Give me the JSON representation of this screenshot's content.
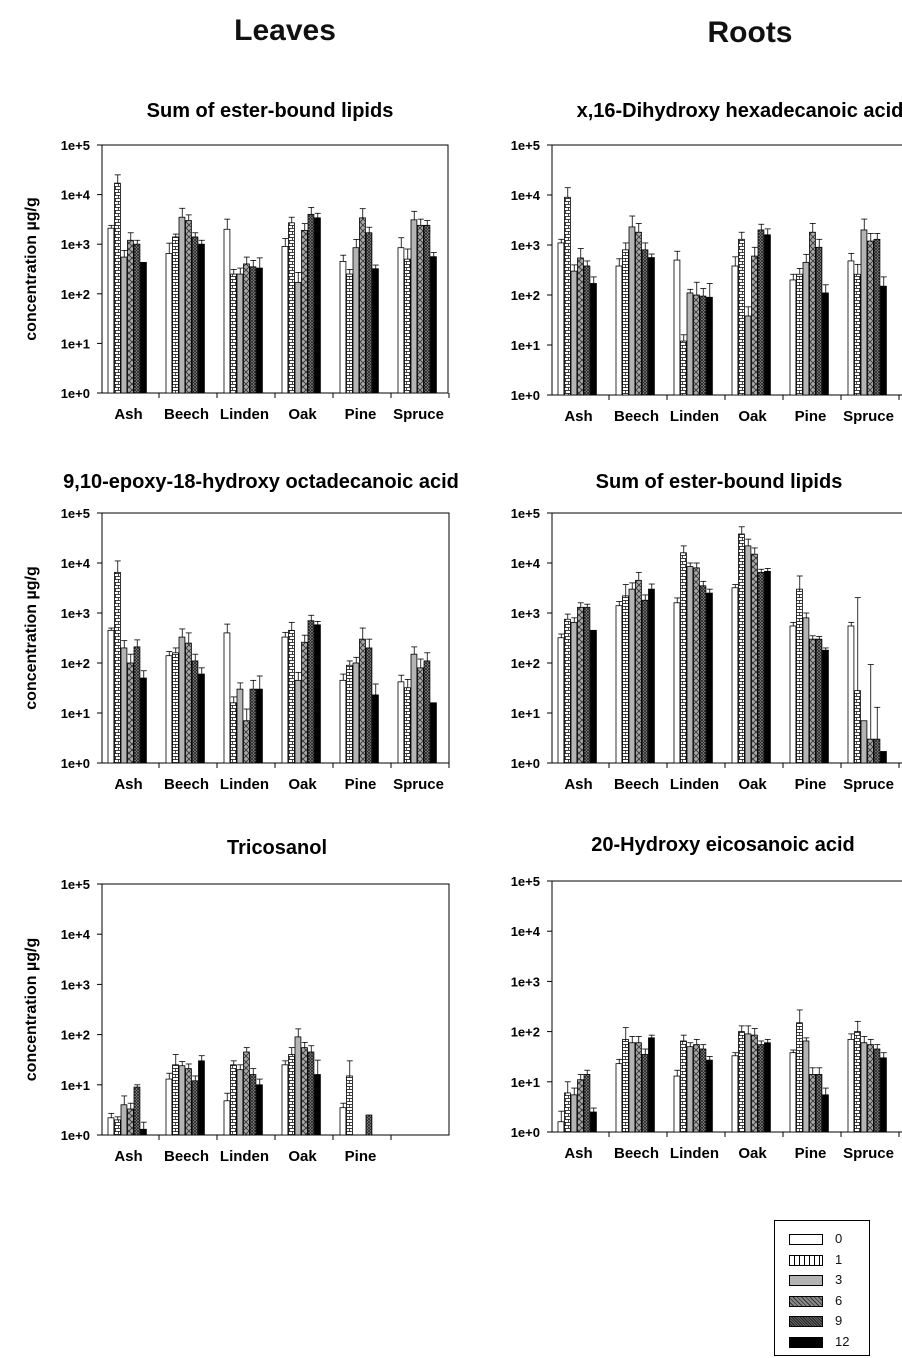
{
  "column_titles": {
    "left": "Leaves",
    "right": "Roots"
  },
  "y_axis_label": "concentration µg/g",
  "series_colors": {
    "0": "#ffffff",
    "1": "#f2f2f2",
    "3": "#b4b4b4",
    "6": "#8c8c8c",
    "9": "#6a6a6a",
    "12": "#000000"
  },
  "legend": [
    {
      "label": "0",
      "pattern": "white"
    },
    {
      "label": "1",
      "pattern": "bricks"
    },
    {
      "label": "3",
      "pattern": "gray"
    },
    {
      "label": "6",
      "pattern": "diamonds"
    },
    {
      "label": "9",
      "pattern": "dense-crosshatch"
    },
    {
      "label": "12",
      "pattern": "black"
    }
  ],
  "chart_data": [
    {
      "type": "bar",
      "column": "Leaves",
      "title": "Sum of ester-bound lipids",
      "yscale": "log",
      "ylim": [
        1,
        100000
      ],
      "yticks": [
        "1e+0",
        "1e+1",
        "1e+2",
        "1e+3",
        "1e+4",
        "1e+5"
      ],
      "ylabel": "concentration µg/g",
      "categories": [
        "Ash",
        "Beech",
        "Linden",
        "Oak",
        "Pine",
        "Spruce"
      ],
      "series": [
        {
          "name": "0",
          "values": [
            2100,
            650,
            2000,
            900,
            450,
            850
          ]
        },
        {
          "name": "1",
          "values": [
            17000,
            1400,
            250,
            2700,
            250,
            500
          ]
        },
        {
          "name": "3",
          "values": [
            550,
            3500,
            250,
            170,
            850,
            3100
          ]
        },
        {
          "name": "6",
          "values": [
            1200,
            3000,
            400,
            1900,
            3400,
            2400
          ]
        },
        {
          "name": "9",
          "values": [
            1000,
            1400,
            350,
            4000,
            1700,
            2400
          ]
        },
        {
          "name": "12",
          "values": [
            430,
            1000,
            330,
            3400,
            320,
            560
          ]
        }
      ],
      "errors": [
        [
          300,
          400,
          1200,
          400,
          150,
          500
        ],
        [
          8000,
          200,
          60,
          800,
          60,
          300
        ],
        [
          200,
          1800,
          80,
          100,
          400,
          1500
        ],
        [
          500,
          900,
          150,
          700,
          1800,
          800
        ],
        [
          200,
          300,
          120,
          1500,
          500,
          600
        ],
        [
          0,
          200,
          200,
          800,
          60,
          120
        ]
      ]
    },
    {
      "type": "bar",
      "column": "Leaves",
      "title": "x,16-Dihydroxy hexadecanoic acid",
      "yscale": "log",
      "ylim": [
        1,
        100000
      ],
      "yticks": [
        "1e+0",
        "1e+1",
        "1e+2",
        "1e+3",
        "1e+4",
        "1e+5"
      ],
      "ylabel": "concentration µg/g",
      "categories": [
        "Ash",
        "Beech",
        "Linden",
        "Oak",
        "Pine",
        "Spruce"
      ],
      "series": [
        {
          "name": "0",
          "values": [
            1100,
            380,
            500,
            380,
            200,
            480
          ]
        },
        {
          "name": "1",
          "values": [
            9000,
            800,
            12,
            1300,
            260,
            260
          ]
        },
        {
          "name": "3",
          "values": [
            300,
            2300,
            110,
            38,
            450,
            2000
          ]
        },
        {
          "name": "6",
          "values": [
            550,
            1800,
            100,
            600,
            1800,
            1200
          ]
        },
        {
          "name": "9",
          "values": [
            380,
            800,
            95,
            2000,
            900,
            1300
          ]
        },
        {
          "name": "12",
          "values": [
            170,
            560,
            90,
            1600,
            110,
            150
          ]
        }
      ],
      "errors": [
        [
          200,
          150,
          250,
          200,
          60,
          200
        ],
        [
          5000,
          300,
          4,
          500,
          80,
          150
        ],
        [
          100,
          1500,
          20,
          20,
          200,
          1300
        ],
        [
          300,
          900,
          80,
          300,
          900,
          500
        ],
        [
          100,
          300,
          40,
          600,
          400,
          400
        ],
        [
          60,
          100,
          80,
          500,
          50,
          80
        ]
      ]
    },
    {
      "type": "bar",
      "column": "Leaves",
      "title": "9,10-epoxy-18-hydroxy octadecanoic acid",
      "yscale": "log",
      "ylim": [
        1,
        100000
      ],
      "yticks": [
        "1e+0",
        "1e+1",
        "1e+2",
        "1e+3",
        "1e+4",
        "1e+5"
      ],
      "ylabel": "concentration µg/g",
      "categories": [
        "Ash",
        "Beech",
        "Linden",
        "Oak",
        "Pine",
        "Spruce"
      ],
      "series": [
        {
          "name": "0",
          "values": [
            450,
            140,
            400,
            330,
            45,
            42
          ]
        },
        {
          "name": "1",
          "values": [
            6500,
            160,
            16,
            450,
            90,
            32
          ]
        },
        {
          "name": "3",
          "values": [
            200,
            330,
            30,
            45,
            100,
            150
          ]
        },
        {
          "name": "6",
          "values": [
            100,
            250,
            7,
            260,
            300,
            80
          ]
        },
        {
          "name": "9",
          "values": [
            210,
            110,
            30,
            700,
            200,
            110
          ]
        },
        {
          "name": "12",
          "values": [
            50,
            60,
            30,
            580,
            23,
            16
          ]
        }
      ],
      "errors": [
        [
          50,
          30,
          200,
          80,
          15,
          15
        ],
        [
          4500,
          40,
          5,
          200,
          20,
          15
        ],
        [
          80,
          150,
          10,
          20,
          30,
          60
        ],
        [
          50,
          150,
          5,
          100,
          200,
          40
        ],
        [
          80,
          40,
          15,
          200,
          100,
          50
        ],
        [
          20,
          20,
          25,
          100,
          15,
          0
        ]
      ]
    },
    {
      "type": "bar",
      "column": "Roots",
      "title": "Sum of ester-bound lipids",
      "yscale": "log",
      "ylim": [
        1,
        100000
      ],
      "yticks": [
        "1e+0",
        "1e+1",
        "1e+2",
        "1e+3",
        "1e+4",
        "1e+5"
      ],
      "categories": [
        "Ash",
        "Beech",
        "Linden",
        "Oak",
        "Pine",
        "Spruce"
      ],
      "series": [
        {
          "name": "0",
          "values": [
            320,
            1400,
            1600,
            3200,
            550,
            550
          ]
        },
        {
          "name": "1",
          "values": [
            750,
            2200,
            16000,
            38000,
            3000,
            28
          ]
        },
        {
          "name": "3",
          "values": [
            650,
            3000,
            8500,
            22000,
            800,
            7
          ]
        },
        {
          "name": "6",
          "values": [
            1300,
            4500,
            8000,
            15000,
            300,
            3
          ]
        },
        {
          "name": "9",
          "values": [
            1300,
            1800,
            3500,
            6500,
            300,
            3
          ]
        },
        {
          "name": "12",
          "values": [
            450,
            3000,
            2500,
            6800,
            180,
            1.7
          ]
        }
      ],
      "errors": [
        [
          60,
          300,
          400,
          500,
          100,
          100
        ],
        [
          200,
          1500,
          6000,
          15000,
          2500,
          2000
        ],
        [
          150,
          1000,
          1500,
          8000,
          200,
          0
        ],
        [
          300,
          2000,
          2000,
          5000,
          50,
          90
        ],
        [
          200,
          500,
          800,
          1000,
          40,
          10
        ],
        [
          0,
          800,
          500,
          1000,
          20,
          0
        ]
      ]
    },
    {
      "type": "bar",
      "column": "Roots",
      "title": "Tricosanol",
      "yscale": "log",
      "ylim": [
        1,
        100000
      ],
      "yticks": [
        "1e+0",
        "1e+1",
        "1e+2",
        "1e+3",
        "1e+4",
        "1e+5"
      ],
      "categories": [
        "Ash",
        "Beech",
        "Linden",
        "Oak",
        "Pine"
      ],
      "series": [
        {
          "name": "0",
          "values": [
            2.2,
            13,
            4.8,
            25,
            3.5
          ]
        },
        {
          "name": "1",
          "values": [
            2,
            25,
            25,
            40,
            15
          ]
        },
        {
          "name": "3",
          "values": [
            4,
            24,
            20,
            90,
            0
          ]
        },
        {
          "name": "6",
          "values": [
            3.3,
            21,
            45,
            55,
            0
          ]
        },
        {
          "name": "9",
          "values": [
            9,
            12,
            16,
            45,
            2.5
          ]
        },
        {
          "name": "12",
          "values": [
            1.3,
            30,
            10,
            16,
            0
          ]
        }
      ],
      "errors": [
        [
          0.5,
          4,
          2,
          5,
          0.8
        ],
        [
          0.3,
          15,
          5,
          15,
          15
        ],
        [
          2,
          5,
          5,
          40,
          0
        ],
        [
          1,
          5,
          10,
          15,
          0
        ],
        [
          1,
          3,
          5,
          15,
          0
        ],
        [
          0.5,
          8,
          3,
          15,
          0
        ]
      ]
    },
    {
      "type": "bar",
      "column": "Roots",
      "title": "20-Hydroxy eicosanoic acid",
      "yscale": "log",
      "ylim": [
        1,
        100000
      ],
      "yticks": [
        "1e+0",
        "1e+1",
        "1e+2",
        "1e+3",
        "1e+4",
        "1e+5"
      ],
      "categories": [
        "Ash",
        "Beech",
        "Linden",
        "Oak",
        "Pine",
        "Spruce"
      ],
      "series": [
        {
          "name": "0",
          "values": [
            1.6,
            23,
            13,
            33,
            38,
            70
          ]
        },
        {
          "name": "1",
          "values": [
            6,
            70,
            65,
            100,
            150,
            100
          ]
        },
        {
          "name": "3",
          "values": [
            5.5,
            60,
            50,
            90,
            65,
            60
          ]
        },
        {
          "name": "6",
          "values": [
            11,
            60,
            55,
            85,
            14,
            55
          ]
        },
        {
          "name": "9",
          "values": [
            14,
            35,
            45,
            55,
            14,
            45
          ]
        },
        {
          "name": "12",
          "values": [
            2.5,
            75,
            27,
            60,
            5.5,
            30
          ]
        }
      ],
      "errors": [
        [
          1,
          5,
          4,
          5,
          5,
          20
        ],
        [
          4,
          50,
          20,
          30,
          120,
          60
        ],
        [
          2,
          20,
          10,
          40,
          10,
          20
        ],
        [
          3,
          20,
          15,
          30,
          5,
          15
        ],
        [
          3,
          10,
          10,
          10,
          5,
          10
        ],
        [
          0.5,
          10,
          5,
          10,
          2,
          8
        ]
      ]
    }
  ]
}
